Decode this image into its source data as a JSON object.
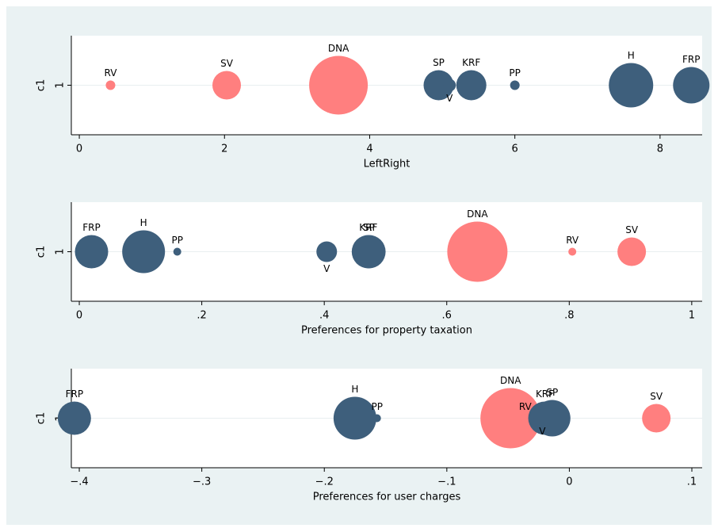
{
  "chart_data": [
    {
      "type": "scatter",
      "xlabel": "LeftRight",
      "ylabel": "c1",
      "labels": [
        "RV",
        "SV",
        "DNA",
        "SP",
        "V",
        "KRF",
        "PP",
        "H",
        "FRP"
      ],
      "x": [
        0.43,
        2.03,
        3.57,
        4.95,
        5.1,
        5.4,
        6.0,
        7.6,
        8.43
      ],
      "y": [
        1,
        1,
        1,
        1,
        1,
        1,
        1,
        1,
        1
      ],
      "sizes": [
        6,
        18,
        37,
        19,
        8,
        19,
        6,
        28,
        23
      ],
      "colors": [
        "#ff7f7f",
        "#ff7f7f",
        "#ff7f7f",
        "#3e5f7c",
        "#3e5f7c",
        "#3e5f7c",
        "#3e5f7c",
        "#3e5f7c",
        "#3e5f7c"
      ],
      "label_pos": [
        "above",
        "above",
        "above",
        "above",
        "below",
        "above",
        "above",
        "above",
        "above"
      ],
      "xlim": [
        -0.11,
        8.58
      ],
      "xticks": [
        0,
        2,
        4,
        6,
        8
      ],
      "ylim": [
        0,
        2
      ],
      "yticks": [
        1
      ],
      "grid": true
    },
    {
      "type": "scatter",
      "xlabel": "Preferences for property taxation",
      "ylabel": "c1",
      "labels": [
        "FRP",
        "H",
        "PP",
        "V",
        "KRF",
        "SP",
        "DNA",
        "RV",
        "SV"
      ],
      "x": [
        0.02,
        0.105,
        0.16,
        0.404,
        0.472,
        0.473,
        0.65,
        0.805,
        0.902
      ],
      "y": [
        1,
        1,
        1,
        1,
        1,
        1,
        1,
        1,
        1
      ],
      "sizes": [
        21,
        27,
        5,
        13,
        21,
        21,
        38,
        5,
        18
      ],
      "colors": [
        "#3e5f7c",
        "#3e5f7c",
        "#3e5f7c",
        "#3e5f7c",
        "#3e5f7c",
        "#3e5f7c",
        "#ff7f7f",
        "#ff7f7f",
        "#ff7f7f"
      ],
      "label_pos": [
        "above",
        "above",
        "above",
        "below",
        "above",
        "above",
        "above",
        "above",
        "above"
      ],
      "xlim": [
        -0.013,
        1.017
      ],
      "xticks": [
        0,
        {
          "value": 0.2,
          "label": ".2"
        },
        {
          "value": 0.4,
          "label": ".4"
        },
        {
          "value": 0.6,
          "label": ".6"
        },
        {
          "value": 0.8,
          "label": ".8"
        },
        1
      ],
      "ylim": [
        0,
        2
      ],
      "yticks": [
        1
      ],
      "grid": true
    },
    {
      "type": "scatter",
      "xlabel": "Preferences for user charges",
      "ylabel": "c1",
      "labels": [
        "FRP",
        "H",
        "PP",
        "DNA",
        "RV",
        "V",
        "KRF",
        "SP",
        "SV"
      ],
      "x": [
        -0.404,
        -0.175,
        -0.157,
        -0.048,
        -0.036,
        -0.022,
        -0.02,
        -0.014,
        0.071
      ],
      "y": [
        1,
        1,
        1,
        1,
        1,
        1,
        1,
        1,
        1
      ],
      "sizes": [
        21,
        27,
        5,
        38,
        5,
        8,
        21,
        23,
        18
      ],
      "colors": [
        "#3e5f7c",
        "#3e5f7c",
        "#3e5f7c",
        "#ff7f7f",
        "#ff7f7f",
        "#3e5f7c",
        "#3e5f7c",
        "#3e5f7c",
        "#ff7f7f"
      ],
      "label_pos": [
        "above",
        "above",
        "above",
        "above",
        "above",
        "below",
        "above",
        "above",
        "above"
      ],
      "xlim": [
        -0.4065,
        0.1084
      ],
      "xticks": [
        {
          "value": -0.4,
          "label": "−.4"
        },
        {
          "value": -0.3,
          "label": "−.3"
        },
        {
          "value": -0.2,
          "label": "−.2"
        },
        {
          "value": -0.1,
          "label": "−.1"
        },
        0,
        {
          "value": 0.1,
          "label": ".1"
        }
      ],
      "ylim": [
        0,
        2
      ],
      "yticks": [
        1
      ],
      "grid": true
    }
  ]
}
